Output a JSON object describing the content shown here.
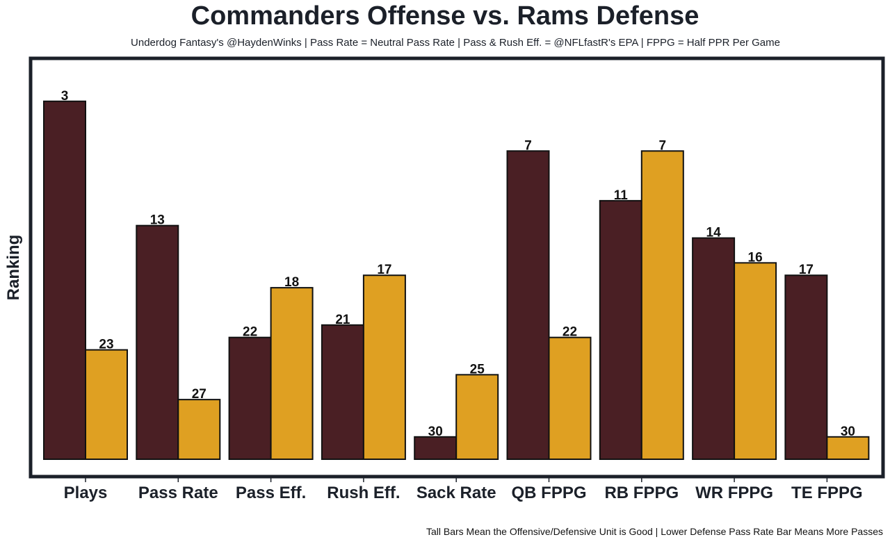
{
  "chart_data": {
    "type": "bar",
    "title": "Commanders Offense vs. Rams Defense",
    "subtitle": "Underdog Fantasy's @HaydenWinks | Pass Rate = Neutral Pass Rate | Pass & Rush Eff. = @NFLfastR's EPA | FPPG = Half PPR Per Game",
    "footer": "Tall Bars Mean the Offensive/Defensive Unit is Good | Lower Defense Pass Rate Bar Means More Passes",
    "xlabel": "",
    "ylabel": "Ranking",
    "y_inverted_rank": true,
    "grid": false,
    "legend": "none",
    "categories": [
      "Plays",
      "Pass Rate",
      "Pass Eff.",
      "Rush Eff.",
      "Sack Rate",
      "QB FPPG",
      "RB FPPG",
      "WR FPPG",
      "TE FPPG"
    ],
    "series": [
      {
        "name": "Commanders Offense",
        "color": "#4a1f24",
        "values": [
          3,
          13,
          22,
          21,
          30,
          7,
          11,
          14,
          17
        ]
      },
      {
        "name": "Rams Defense",
        "color": "#dfa022",
        "values": [
          23,
          27,
          18,
          17,
          25,
          22,
          7,
          16,
          30
        ]
      }
    ]
  }
}
